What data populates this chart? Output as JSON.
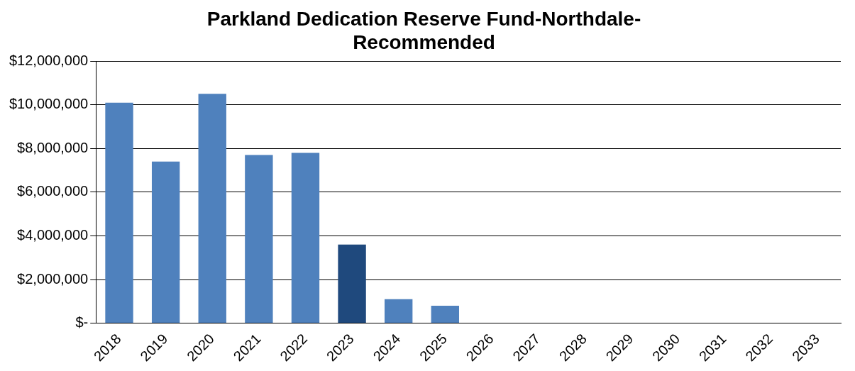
{
  "chart_data": {
    "type": "bar",
    "title": [
      "Parkland Dedication Reserve Fund-Northdale-",
      "Recommended"
    ],
    "categories": [
      "2018",
      "2019",
      "2020",
      "2021",
      "2022",
      "2023",
      "2024",
      "2025",
      "2026",
      "2027",
      "2028",
      "2029",
      "2030",
      "2031",
      "2032",
      "2033"
    ],
    "values": [
      10100000,
      7400000,
      10500000,
      7700000,
      7800000,
      3600000,
      1100000,
      800000,
      0,
      0,
      0,
      0,
      0,
      0,
      0,
      0
    ],
    "colors": [
      "#4f81bd",
      "#4f81bd",
      "#4f81bd",
      "#4f81bd",
      "#4f81bd",
      "#1f497d",
      "#4f81bd",
      "#4f81bd",
      "#4f81bd",
      "#4f81bd",
      "#4f81bd",
      "#4f81bd",
      "#4f81bd",
      "#4f81bd",
      "#4f81bd",
      "#4f81bd"
    ],
    "ylim": [
      0,
      12000000
    ],
    "yticks": [
      {
        "value": 0,
        "label": "$-"
      },
      {
        "value": 2000000,
        "label": "$2,000,000"
      },
      {
        "value": 4000000,
        "label": "$4,000,000"
      },
      {
        "value": 6000000,
        "label": "$6,000,000"
      },
      {
        "value": 8000000,
        "label": "$8,000,000"
      },
      {
        "value": 10000000,
        "label": "$10,000,000"
      },
      {
        "value": 12000000,
        "label": "$12,000,000"
      }
    ],
    "grid": "y",
    "legend": false
  }
}
